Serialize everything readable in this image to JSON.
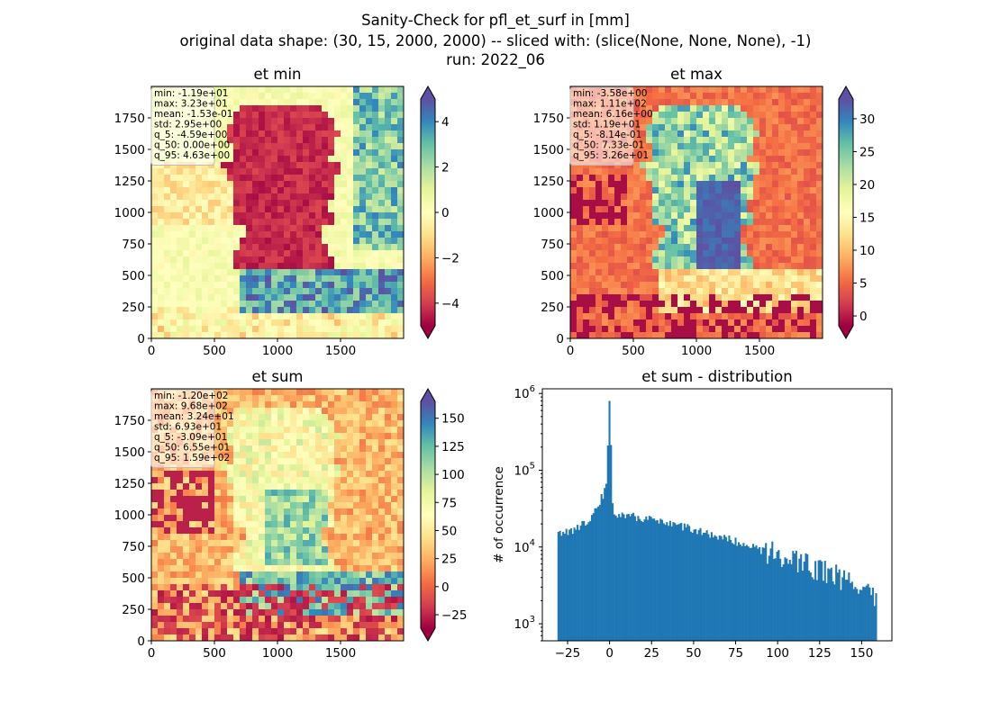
{
  "figure": {
    "title_lines": [
      "Sanity-Check for pfl_et_surf in [mm]",
      "original data shape: (30, 15, 2000, 2000) -- sliced with: (slice(None, None, None), -1)",
      "run: 2022_06"
    ]
  },
  "chart_data": [
    {
      "type": "heatmap",
      "title": "et min",
      "xlim": [
        0,
        2000
      ],
      "ylim": [
        0,
        2000
      ],
      "x_ticks": [
        "0",
        "500",
        "1000",
        "1500"
      ],
      "y_ticks": [
        "0",
        "250",
        "500",
        "750",
        "1000",
        "1250",
        "1500",
        "1750"
      ],
      "colormap": "Spectral",
      "color_range": [
        -5,
        5
      ],
      "colorbar_ticks": [
        "−4",
        "−2",
        "0",
        "2",
        "4"
      ],
      "colorbar_values": [
        -4,
        -2,
        0,
        2,
        4
      ],
      "stats": [
        "min: -1.19e+01",
        "max: 3.23e+01",
        "mean: -1.53e-01",
        "std: 2.95e+00",
        "q_5: -4.59e+00",
        "q_50: 0.00e+00",
        "q_95: 4.63e+00"
      ]
    },
    {
      "type": "heatmap",
      "title": "et max",
      "xlim": [
        0,
        2000
      ],
      "ylim": [
        0,
        2000
      ],
      "x_ticks": [
        "0",
        "500",
        "1000",
        "1500"
      ],
      "y_ticks": [
        "0",
        "250",
        "500",
        "750",
        "1000",
        "1250",
        "1500",
        "1750"
      ],
      "colormap": "Spectral",
      "color_range": [
        -1.5,
        33
      ],
      "colorbar_ticks": [
        "0",
        "5",
        "10",
        "15",
        "20",
        "25",
        "30"
      ],
      "colorbar_values": [
        0,
        5,
        10,
        15,
        20,
        25,
        30
      ],
      "stats": [
        "min: -3.58e+00",
        "max: 1.11e+02",
        "mean: 6.16e+00",
        "std: 1.19e+01",
        "q_5: -8.14e-01",
        "q_50: 7.33e-01",
        "q_95: 3.26e+01"
      ]
    },
    {
      "type": "heatmap",
      "title": "et sum",
      "xlim": [
        0,
        2000
      ],
      "ylim": [
        0,
        2000
      ],
      "x_ticks": [
        "0",
        "500",
        "1000",
        "1500"
      ],
      "y_ticks": [
        "0",
        "250",
        "500",
        "750",
        "1000",
        "1250",
        "1500",
        "1750"
      ],
      "colormap": "Spectral",
      "color_range": [
        -37,
        165
      ],
      "colorbar_ticks": [
        "−25",
        "0",
        "25",
        "50",
        "75",
        "100",
        "125",
        "150"
      ],
      "colorbar_values": [
        -25,
        0,
        25,
        50,
        75,
        100,
        125,
        150
      ],
      "stats": [
        "min: -1.20e+02",
        "max: 9.68e+02",
        "mean: 3.24e+01",
        "std: 6.93e+01",
        "q_5: -3.09e+01",
        "q_50: 6.55e+01",
        "q_95: 1.59e+02"
      ]
    },
    {
      "type": "bar",
      "title": "et sum - distribution",
      "ylabel": "# of occurrence",
      "xlabel": "",
      "yscale": "log",
      "xlim": [
        -40,
        168
      ],
      "ylim": [
        600,
        1150000
      ],
      "x_ticks": [
        -25,
        0,
        25,
        50,
        75,
        100,
        125,
        150
      ],
      "x_tick_labels": [
        "−25",
        "0",
        "25",
        "50",
        "75",
        "100",
        "125",
        "150"
      ],
      "y_ticks": [
        1000,
        10000,
        100000,
        1000000
      ],
      "y_tick_labels": [
        "10",
        "10",
        "10",
        "10"
      ],
      "y_tick_exponents": [
        "3",
        "4",
        "5",
        "6"
      ],
      "bar_color": "#1f77b4",
      "bin_range": [
        -31,
        159
      ],
      "bin_count": 200,
      "shape_points": [
        [
          -31,
          15000
        ],
        [
          -20,
          17000
        ],
        [
          -12,
          24000
        ],
        [
          -7,
          35000
        ],
        [
          -4,
          48000
        ],
        [
          -2,
          60000
        ],
        [
          0,
          800000
        ],
        [
          2,
          28000
        ],
        [
          10,
          26000
        ],
        [
          30,
          22000
        ],
        [
          50,
          17000
        ],
        [
          75,
          12000
        ],
        [
          100,
          8500
        ],
        [
          120,
          6000
        ],
        [
          140,
          4000
        ],
        [
          150,
          3000
        ],
        [
          159,
          2200
        ]
      ]
    }
  ]
}
